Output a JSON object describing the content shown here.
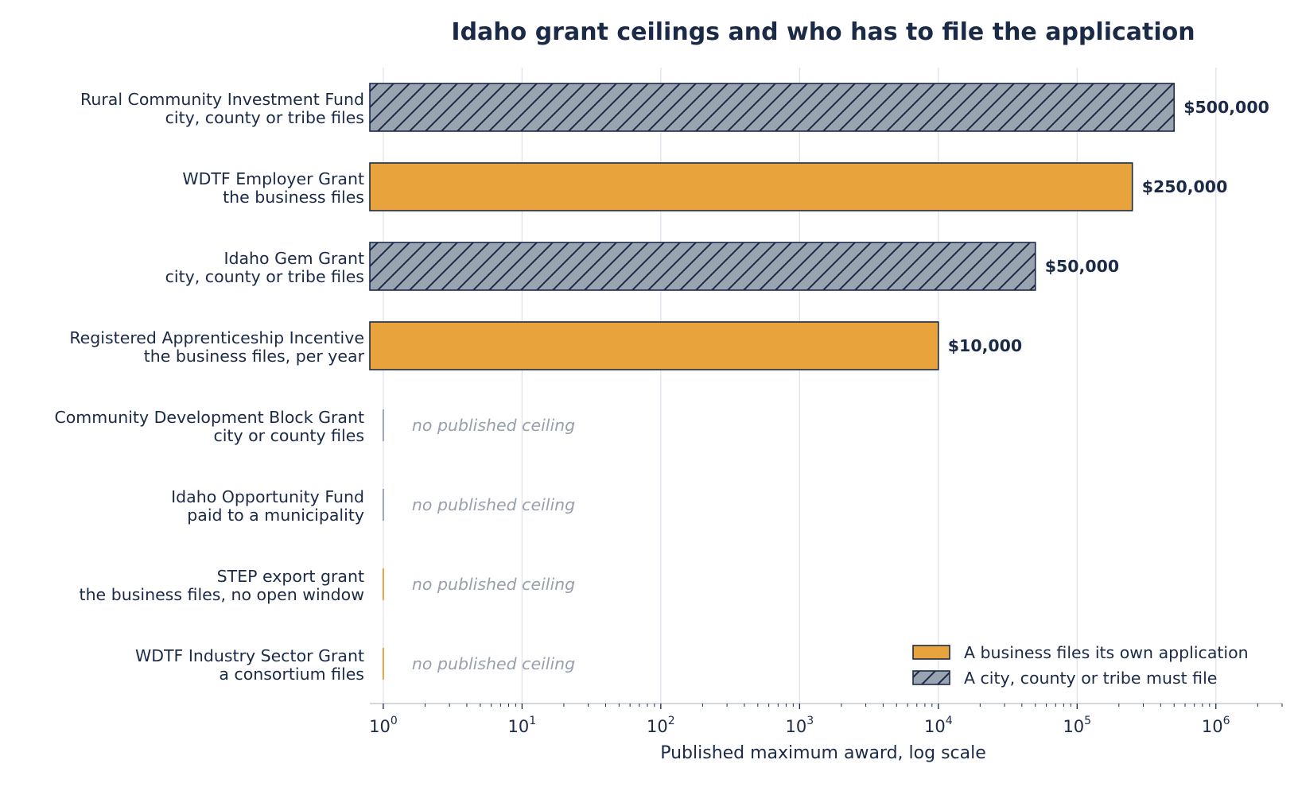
{
  "chart_data": {
    "type": "bar",
    "orientation": "horizontal",
    "title": "Idaho grant ceilings and who has to file the application",
    "xlabel": "Published maximum award, log scale",
    "ylabel": "",
    "x_scale": "log",
    "xlim": [
      0.8,
      3000000
    ],
    "x_ticks": [
      1,
      10,
      100,
      1000,
      10000,
      100000,
      1000000
    ],
    "grid": "vertical",
    "legend_position": "lower-right",
    "colors": {
      "business": "#e8a33d",
      "municipal": "#9aa3b0",
      "edge": "#1b2a47"
    },
    "legend": [
      {
        "key": "business",
        "label": "A business files its own application"
      },
      {
        "key": "municipal",
        "label": "A city, county or tribe must file"
      }
    ],
    "series": [
      {
        "name": "A business files its own application",
        "key": "business"
      },
      {
        "name": "A city, county or tribe must file",
        "key": "municipal"
      }
    ],
    "bars": [
      {
        "name": "Rural Community Investment Fund",
        "sub": "city, county or tribe files",
        "value": 500000,
        "label": "$500,000",
        "filer": "municipal"
      },
      {
        "name": "WDTF Employer Grant",
        "sub": "the business files",
        "value": 250000,
        "label": "$250,000",
        "filer": "business"
      },
      {
        "name": "Idaho Gem Grant",
        "sub": "city, county or tribe files",
        "value": 50000,
        "label": "$50,000",
        "filer": "municipal"
      },
      {
        "name": "Registered Apprenticeship Incentive",
        "sub": "the business files, per year",
        "value": 10000,
        "label": "$10,000",
        "filer": "business"
      },
      {
        "name": "Community Development Block Grant",
        "sub": "city or county files",
        "value": null,
        "label": "no published ceiling",
        "filer": "municipal"
      },
      {
        "name": "Idaho Opportunity Fund",
        "sub": "paid to a municipality",
        "value": null,
        "label": "no published ceiling",
        "filer": "municipal"
      },
      {
        "name": "STEP export grant",
        "sub": "the business files, no open window",
        "value": null,
        "label": "no published ceiling",
        "filer": "business"
      },
      {
        "name": "WDTF Industry Sector Grant",
        "sub": "a consortium files",
        "value": null,
        "label": "no published ceiling",
        "filer": "business"
      }
    ]
  }
}
